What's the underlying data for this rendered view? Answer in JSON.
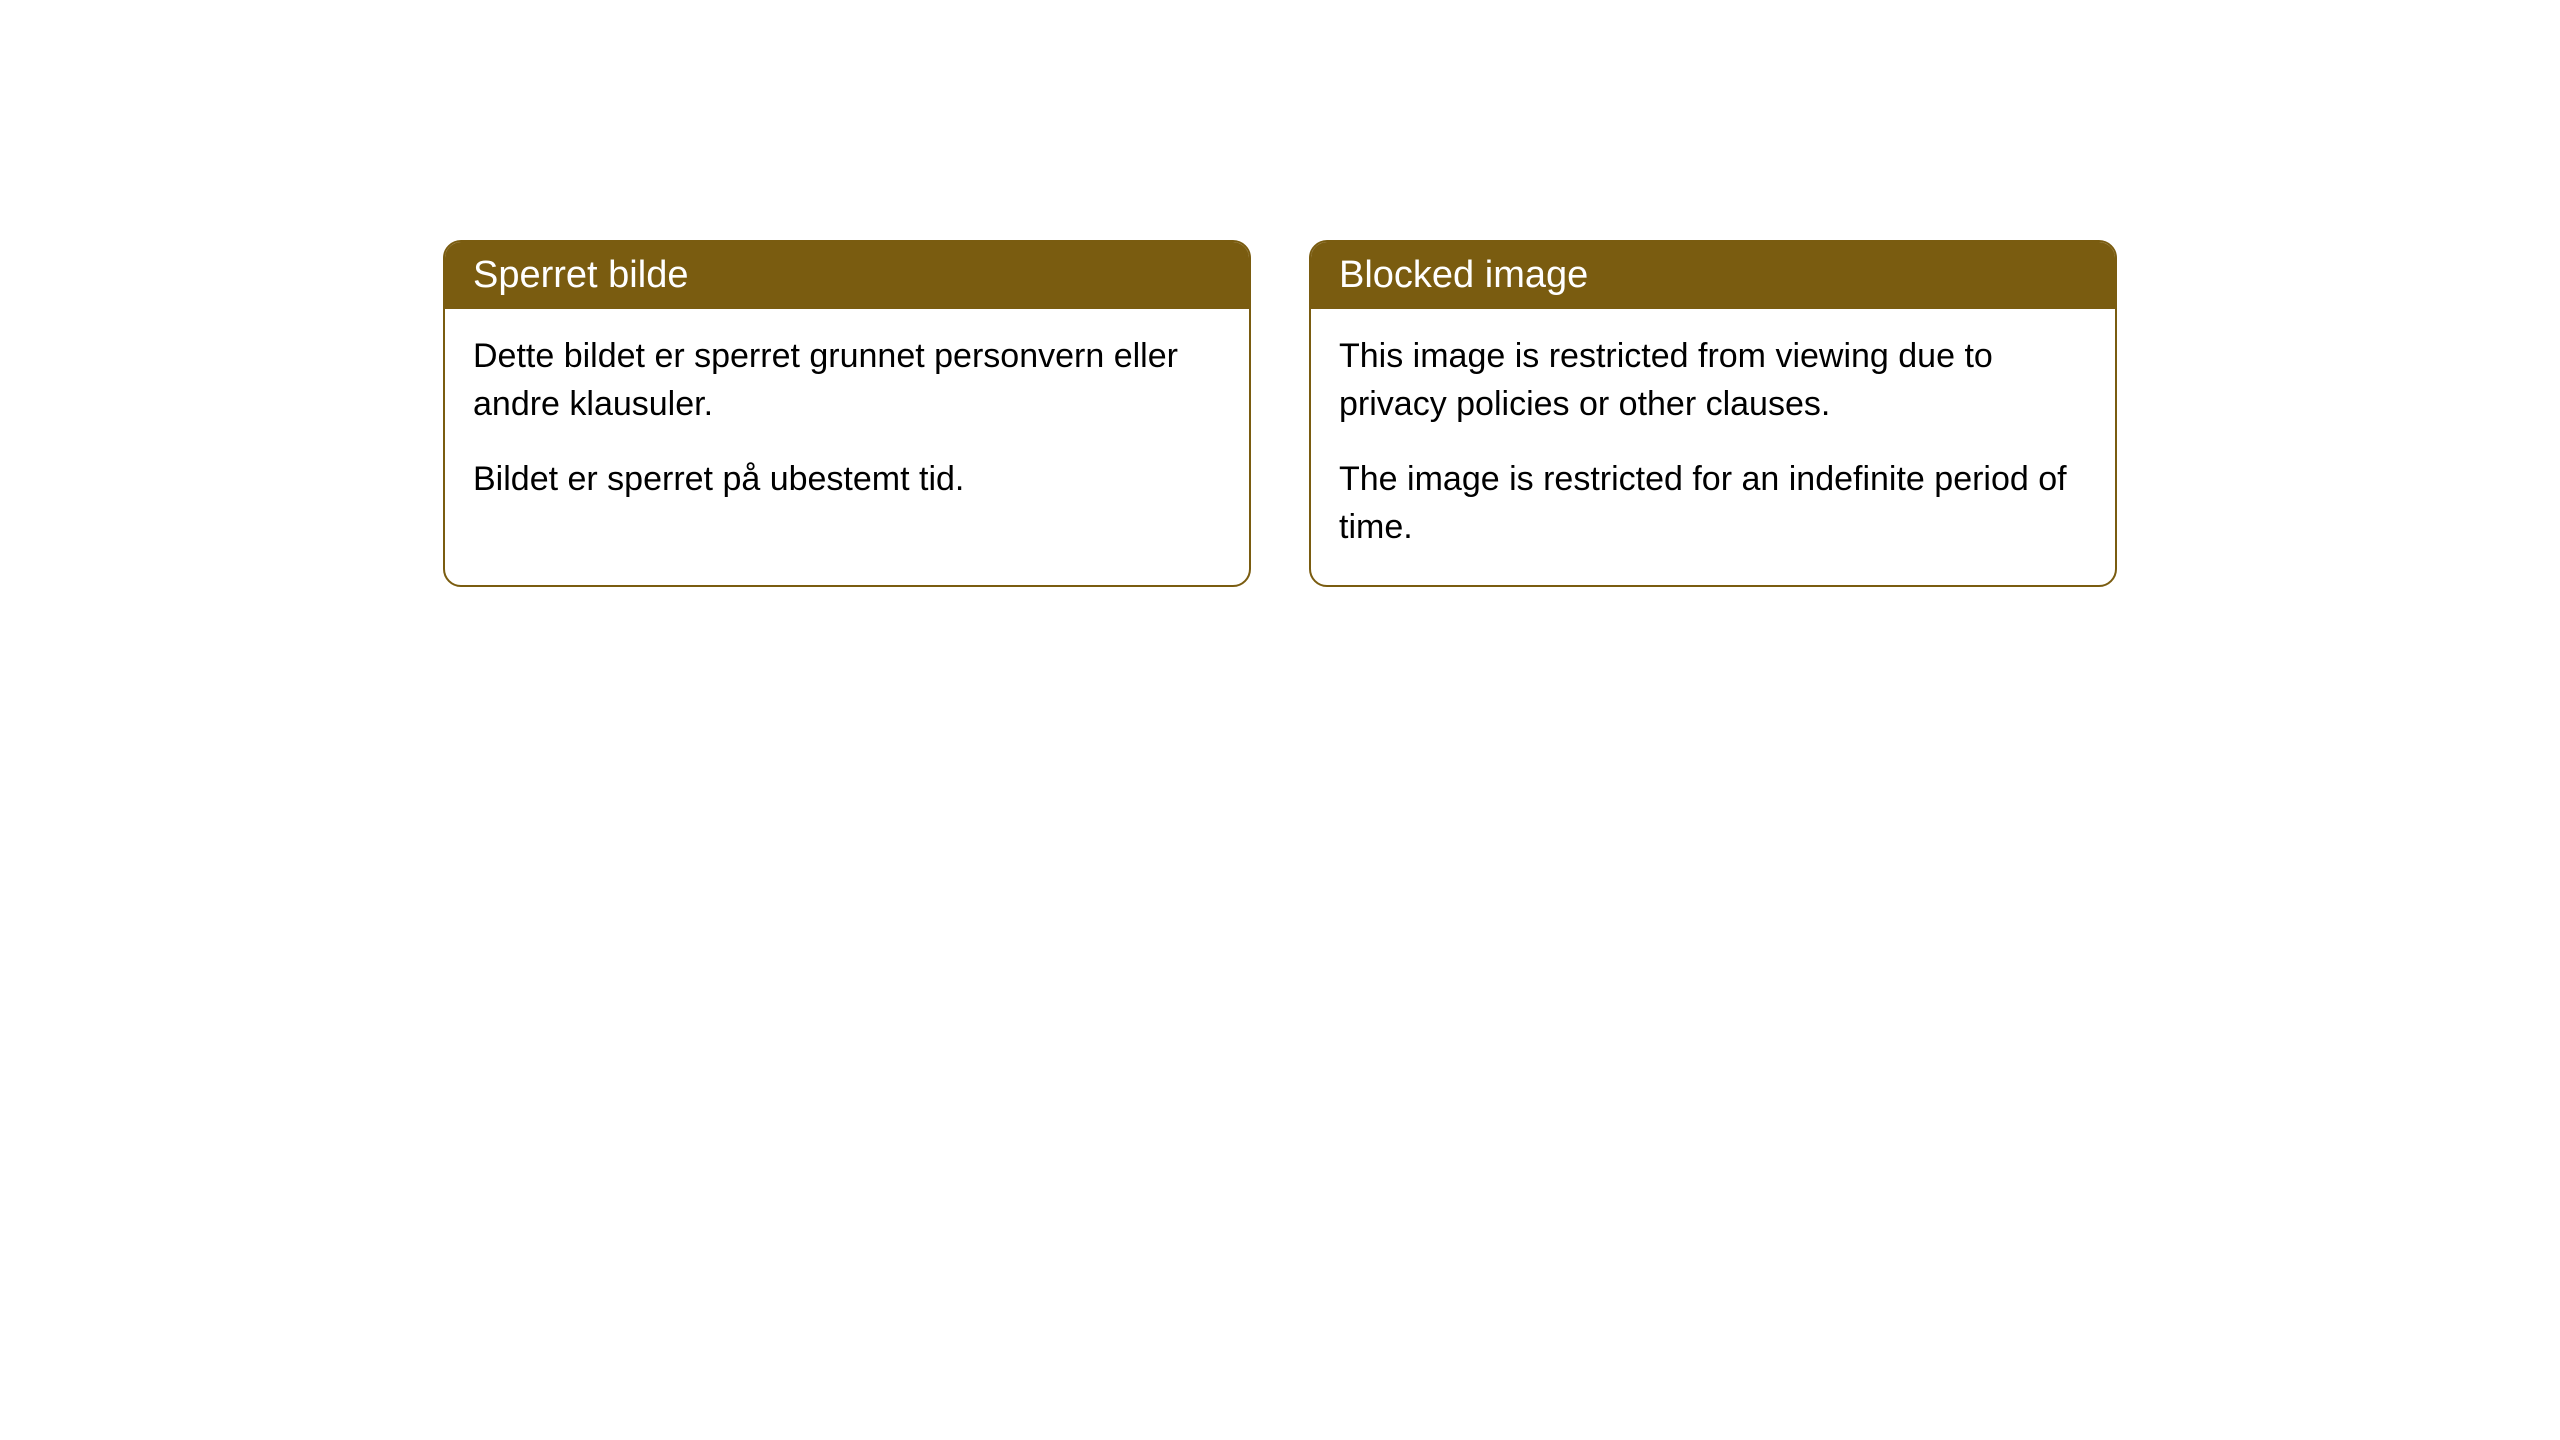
{
  "cards": [
    {
      "title": "Sperret bilde",
      "paragraph1": "Dette bildet er sperret grunnet personvern eller andre klausuler.",
      "paragraph2": "Bildet er sperret på ubestemt tid."
    },
    {
      "title": "Blocked image",
      "paragraph1": "This image is restricted from viewing due to privacy policies or other clauses.",
      "paragraph2": "The image is restricted for an indefinite period of time."
    }
  ],
  "style": {
    "header_background": "#7a5c10",
    "header_text_color": "#ffffff",
    "border_color": "#7a5c10",
    "body_background": "#ffffff",
    "body_text_color": "#000000",
    "border_radius": 18,
    "header_fontsize": 38,
    "body_fontsize": 34
  }
}
